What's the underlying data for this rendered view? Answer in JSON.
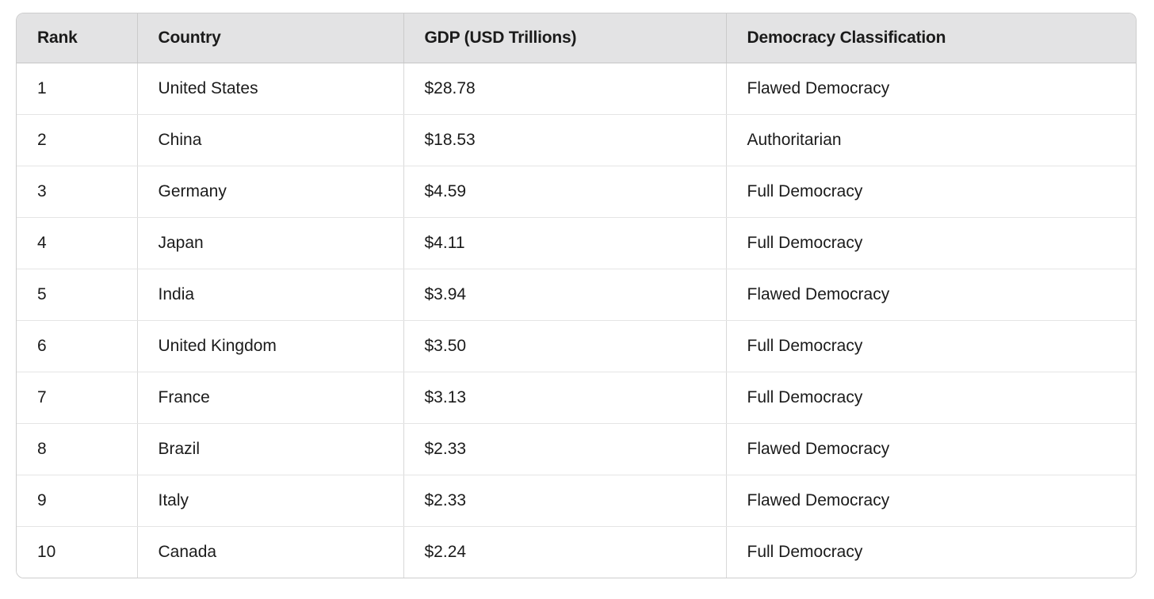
{
  "table": {
    "name": "gdp-democracy-ranking-table",
    "columns": [
      {
        "key": "rank",
        "label": "Rank"
      },
      {
        "key": "country",
        "label": "Country"
      },
      {
        "key": "gdp",
        "label": "GDP (USD Trillions)"
      },
      {
        "key": "democracy",
        "label": "Democracy Classification"
      }
    ],
    "rows": [
      {
        "rank": "1",
        "country": "United States",
        "gdp": "$28.78",
        "democracy": "Flawed Democracy"
      },
      {
        "rank": "2",
        "country": "China",
        "gdp": "$18.53",
        "democracy": "Authoritarian"
      },
      {
        "rank": "3",
        "country": "Germany",
        "gdp": "$4.59",
        "democracy": "Full Democracy"
      },
      {
        "rank": "4",
        "country": "Japan",
        "gdp": "$4.11",
        "democracy": "Full Democracy"
      },
      {
        "rank": "5",
        "country": "India",
        "gdp": "$3.94",
        "democracy": "Flawed Democracy"
      },
      {
        "rank": "6",
        "country": "United Kingdom",
        "gdp": "$3.50",
        "democracy": "Full Democracy"
      },
      {
        "rank": "7",
        "country": "France",
        "gdp": "$3.13",
        "democracy": "Full Democracy"
      },
      {
        "rank": "8",
        "country": "Brazil",
        "gdp": "$2.33",
        "democracy": "Flawed Democracy"
      },
      {
        "rank": "9",
        "country": "Italy",
        "gdp": "$2.33",
        "democracy": "Flawed Democracy"
      },
      {
        "rank": "10",
        "country": "Canada",
        "gdp": "$2.24",
        "democracy": "Full Democracy"
      }
    ],
    "colors": {
      "header_background": "#e3e3e4",
      "outer_border": "#cdcdcd",
      "row_divider": "#e5e5e5",
      "column_divider": "#d9d9d9",
      "text": "#1b1b1b"
    }
  }
}
